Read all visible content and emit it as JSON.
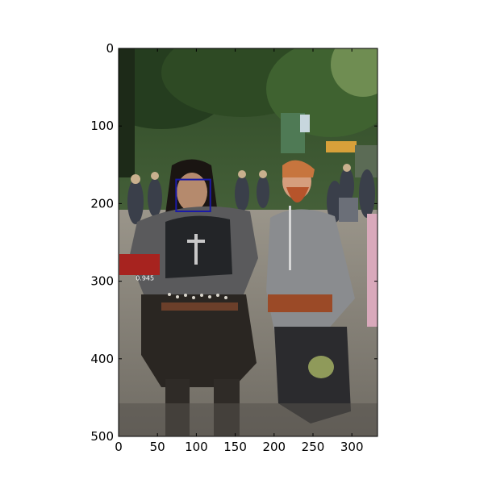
{
  "figure": {
    "image_width": 333,
    "image_height": 500,
    "x_ticks": [
      0,
      50,
      100,
      150,
      200,
      250,
      300
    ],
    "y_ticks": [
      0,
      100,
      200,
      300,
      400,
      500
    ],
    "box_color": "#1a1aa8",
    "detection": {
      "x0": 74,
      "y0": 169,
      "x1": 118,
      "y1": 210,
      "score_label": "0.945"
    }
  }
}
